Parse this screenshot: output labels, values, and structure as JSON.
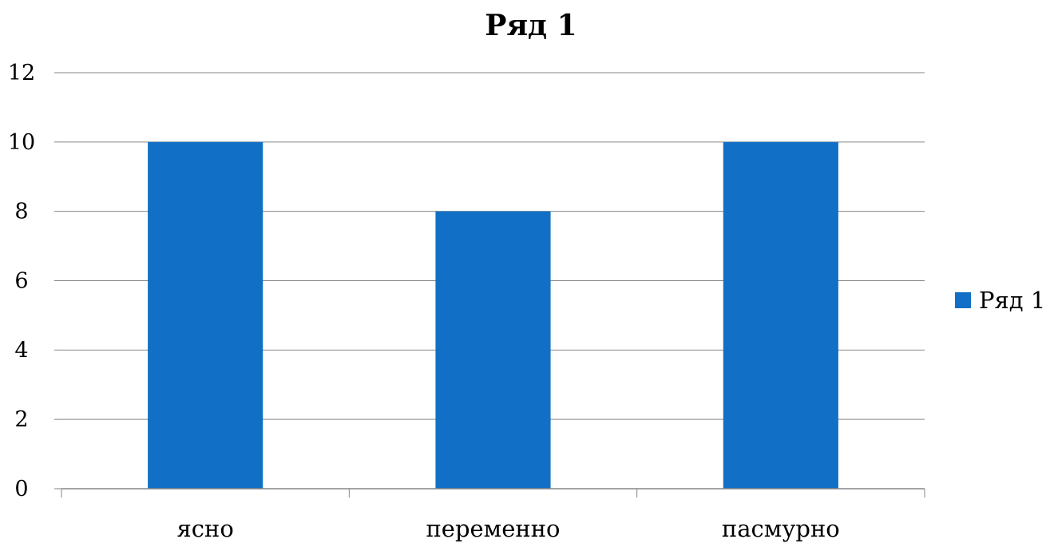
{
  "chart_data": {
    "type": "bar",
    "title": "Ряд 1",
    "xlabel": "",
    "ylabel": "",
    "categories": [
      "ясно",
      "переменно",
      "пасмурно"
    ],
    "series": [
      {
        "name": "Ряд 1",
        "values": [
          10,
          8,
          10
        ],
        "color": "#1170C6"
      }
    ],
    "ylim": [
      0,
      12
    ],
    "yticks": [
      0,
      2,
      4,
      6,
      8,
      10,
      12
    ],
    "ytick_labels": [
      "0",
      "2",
      "4",
      "6",
      "8",
      "10",
      "12"
    ],
    "grid": true,
    "legend_position": "right"
  }
}
